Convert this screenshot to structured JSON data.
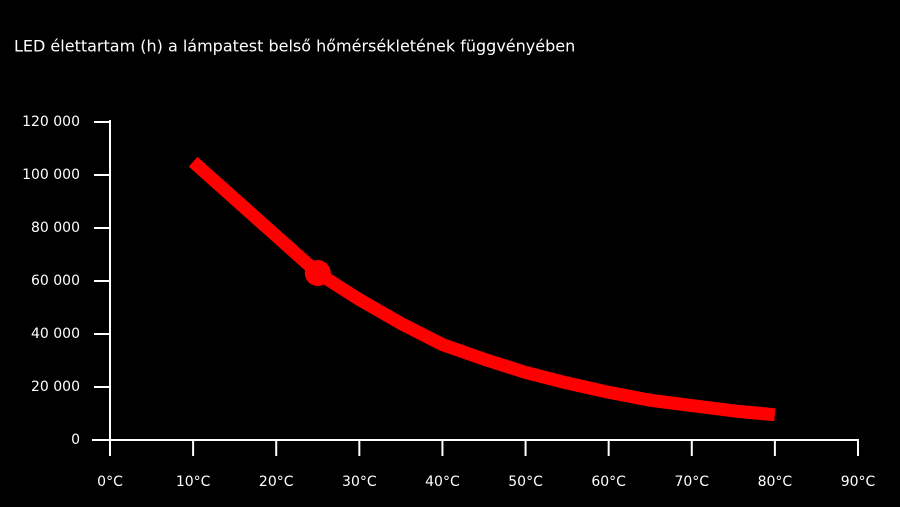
{
  "chart_data": {
    "type": "line",
    "title": "LED élettartam (h) a lámpatest belső hőmérsékletének függvényében",
    "x": [
      10,
      15,
      20,
      25,
      30,
      35,
      40,
      45,
      50,
      55,
      60,
      65,
      70,
      75,
      80
    ],
    "series": [
      {
        "name": "LED élettartam",
        "color": "#ff0000",
        "values": [
          105000,
          91000,
          77000,
          63000,
          53000,
          44000,
          36000,
          30500,
          25500,
          21500,
          18000,
          15000,
          13000,
          11000,
          9500
        ]
      }
    ],
    "highlight": {
      "x": 25,
      "y": 63000,
      "color": "#ff0000"
    },
    "xlim": [
      0,
      90
    ],
    "xticks": [
      {
        "value": 0,
        "label": "0°C"
      },
      {
        "value": 10,
        "label": "10°C"
      },
      {
        "value": 20,
        "label": "20°C"
      },
      {
        "value": 30,
        "label": "30°C"
      },
      {
        "value": 40,
        "label": "40°C"
      },
      {
        "value": 50,
        "label": "50°C"
      },
      {
        "value": 60,
        "label": "60°C"
      },
      {
        "value": 70,
        "label": "70°C"
      },
      {
        "value": 80,
        "label": "80°C"
      },
      {
        "value": 90,
        "label": "90°C"
      }
    ],
    "ylim": [
      0,
      120000
    ],
    "yticks": [
      0,
      {
        "value": 20000,
        "label": "20 000"
      },
      {
        "value": 40000,
        "label": "40 000"
      },
      {
        "value": 60000,
        "label": "60 000"
      },
      {
        "value": 80000,
        "label": "80 000"
      },
      {
        "value": 100000,
        "label": "100 000"
      },
      {
        "value": 120000,
        "label": "120 000"
      }
    ],
    "grid": false
  }
}
